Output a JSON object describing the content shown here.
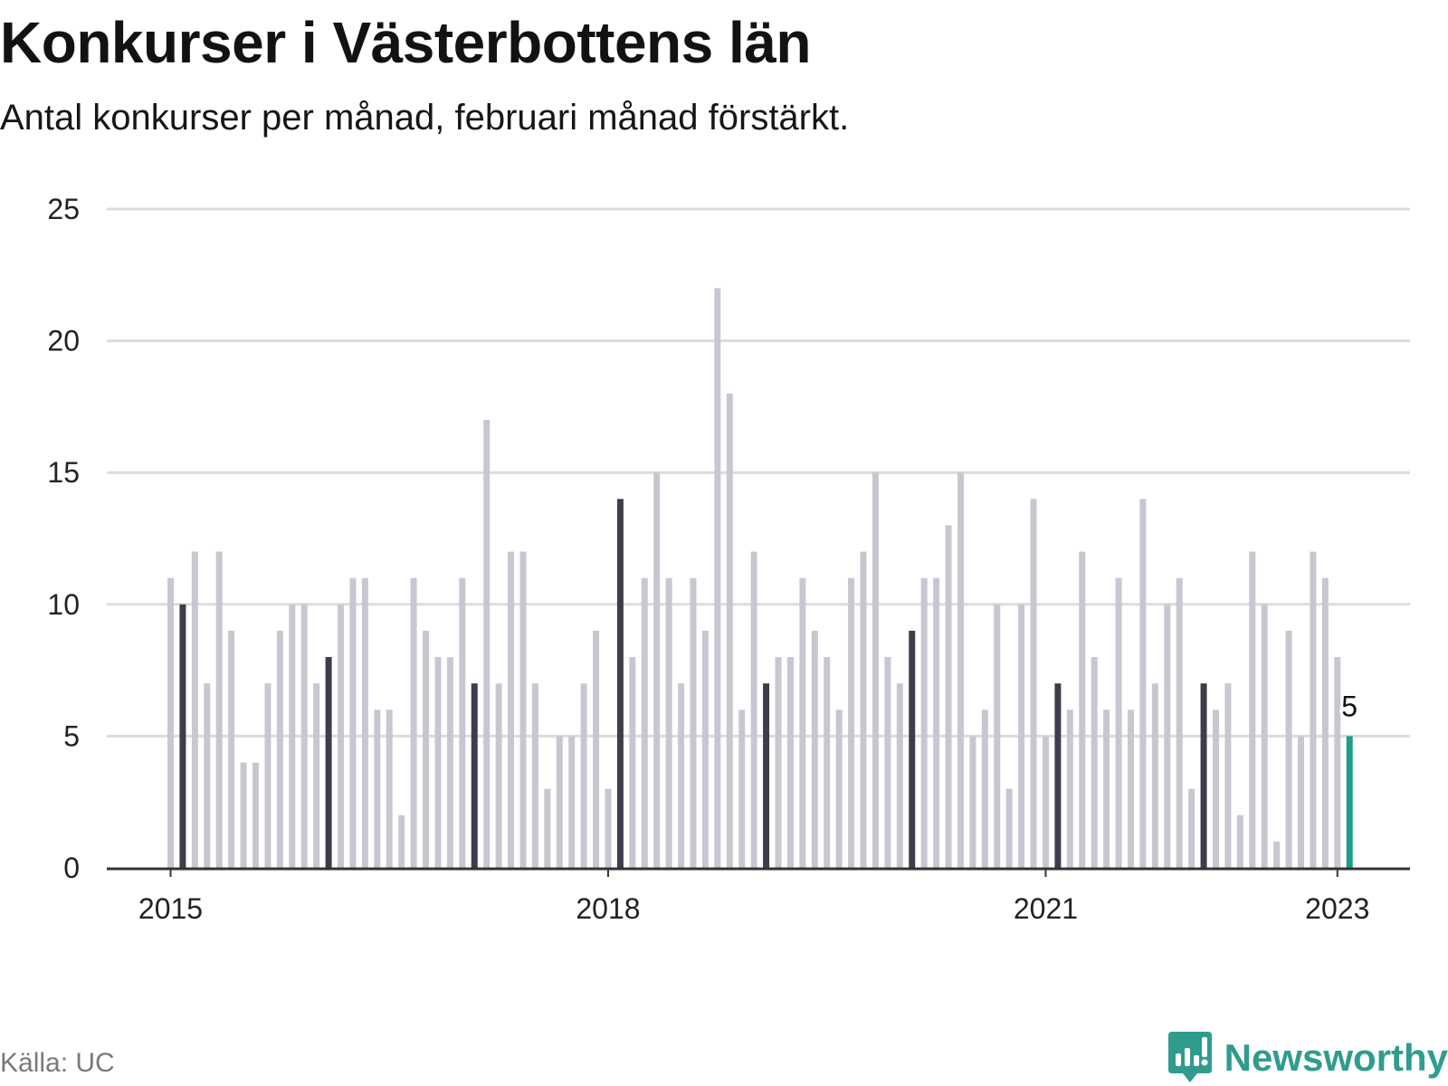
{
  "title": "Konkurser i Västerbottens län",
  "subtitle": "Antal konkurser per månad, februari månad förstärkt.",
  "source": "Källa: UC",
  "brand": "Newsworthy",
  "colors": {
    "normal_bar": "#c8c7d1",
    "highlight_bar": "#3f3d4c",
    "latest_bar": "#1a9d8a",
    "gridline": "#dcdcdc",
    "axis": "#333333",
    "brand": "#2f9c8e"
  },
  "chart_data": {
    "type": "bar",
    "title": "Konkurser i Västerbottens län",
    "subtitle": "Antal konkurser per månad, februari månad förstärkt.",
    "xlabel": "",
    "ylabel": "",
    "ylim": [
      0,
      25
    ],
    "yticks": [
      0,
      5,
      10,
      15,
      20,
      25
    ],
    "xticks": [
      "2015",
      "2018",
      "2021",
      "2023"
    ],
    "grid": true,
    "start": "2015-01",
    "end": "2023-02",
    "highlight": "februari",
    "latest_value_label": "5",
    "categories": [
      "2015-01",
      "2015-02",
      "2015-03",
      "2015-04",
      "2015-05",
      "2015-06",
      "2015-07",
      "2015-08",
      "2015-09",
      "2015-10",
      "2015-11",
      "2015-12",
      "2016-01",
      "2016-02",
      "2016-03",
      "2016-04",
      "2016-05",
      "2016-06",
      "2016-07",
      "2016-08",
      "2016-09",
      "2016-10",
      "2016-11",
      "2016-12",
      "2017-01",
      "2017-02",
      "2017-03",
      "2017-04",
      "2017-05",
      "2017-06",
      "2017-07",
      "2017-08",
      "2017-09",
      "2017-10",
      "2017-11",
      "2017-12",
      "2018-01",
      "2018-02",
      "2018-03",
      "2018-04",
      "2018-05",
      "2018-06",
      "2018-07",
      "2018-08",
      "2018-09",
      "2018-10",
      "2018-11",
      "2018-12",
      "2019-01",
      "2019-02",
      "2019-03",
      "2019-04",
      "2019-05",
      "2019-06",
      "2019-07",
      "2019-08",
      "2019-09",
      "2019-10",
      "2019-11",
      "2019-12",
      "2020-01",
      "2020-02",
      "2020-03",
      "2020-04",
      "2020-05",
      "2020-06",
      "2020-07",
      "2020-08",
      "2020-09",
      "2020-10",
      "2020-11",
      "2020-12",
      "2021-01",
      "2021-02",
      "2021-03",
      "2021-04",
      "2021-05",
      "2021-06",
      "2021-07",
      "2021-08",
      "2021-09",
      "2021-10",
      "2021-11",
      "2021-12",
      "2022-01",
      "2022-02",
      "2022-03",
      "2022-04",
      "2022-05",
      "2022-06",
      "2022-07",
      "2022-08",
      "2022-09",
      "2022-10",
      "2022-11",
      "2022-12",
      "2023-01",
      "2023-02"
    ],
    "values": [
      11,
      10,
      12,
      7,
      12,
      9,
      4,
      4,
      7,
      9,
      10,
      10,
      7,
      8,
      10,
      11,
      11,
      6,
      6,
      2,
      11,
      9,
      8,
      8,
      11,
      7,
      17,
      7,
      12,
      12,
      7,
      3,
      5,
      5,
      7,
      9,
      3,
      14,
      8,
      11,
      15,
      11,
      7,
      11,
      9,
      22,
      18,
      6,
      12,
      7,
      8,
      8,
      11,
      9,
      8,
      6,
      11,
      12,
      15,
      8,
      7,
      9,
      11,
      11,
      13,
      15,
      5,
      6,
      10,
      3,
      10,
      14,
      5,
      7,
      6,
      12,
      8,
      6,
      11,
      6,
      14,
      7,
      10,
      11,
      3,
      7,
      6,
      7,
      2,
      12,
      10,
      1,
      9,
      5,
      12,
      11,
      8,
      5
    ]
  }
}
